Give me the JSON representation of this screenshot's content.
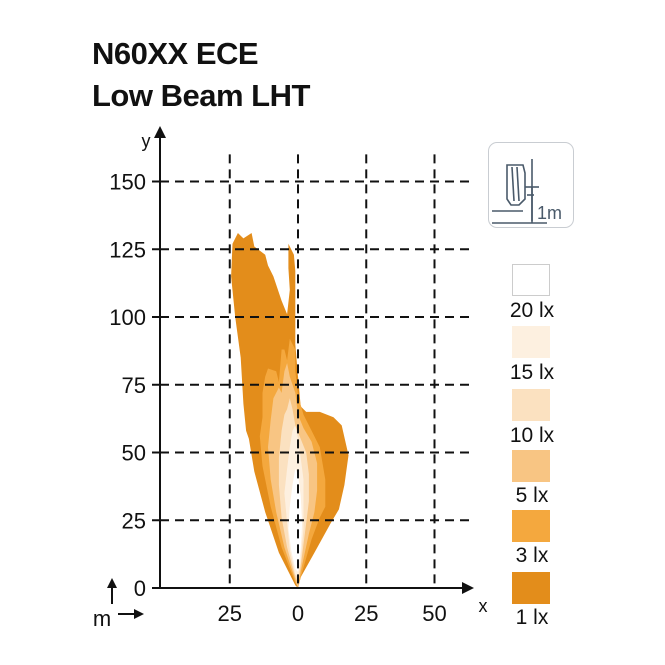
{
  "header": {
    "title_line1": "N60XX ECE",
    "title_line2": "Low Beam LHT"
  },
  "chart_data": {
    "type": "area",
    "xlabel": "x",
    "ylabel": "y",
    "unit_label": "m",
    "x_ticks": [
      "25",
      "0",
      "25",
      "50"
    ],
    "x_tick_values": [
      -25,
      0,
      25,
      50
    ],
    "y_ticks": [
      0,
      25,
      50,
      75,
      100,
      125,
      150
    ],
    "xlim": [
      -50,
      60
    ],
    "ylim": [
      0,
      160
    ],
    "grid": true,
    "mount_badge": {
      "label": "1m",
      "icon": "headlamp-mount-height-icon"
    },
    "legend": [
      {
        "label": "20 lx",
        "color": "#ffffff"
      },
      {
        "label": "15 lx",
        "color": "#fdf0e0"
      },
      {
        "label": "10 lx",
        "color": "#fbe1c0"
      },
      {
        "label": "5 lx",
        "color": "#f8c583"
      },
      {
        "label": "3 lx",
        "color": "#f4a83e"
      },
      {
        "label": "1 lx",
        "color": "#e38d1b"
      }
    ],
    "isolux": [
      {
        "level": "1 lx",
        "color": "#e38d1b",
        "points": [
          [
            -1,
            1
          ],
          [
            -7,
            13
          ],
          [
            -12,
            28
          ],
          [
            -16,
            43
          ],
          [
            -18,
            55
          ],
          [
            -19,
            58
          ],
          [
            -20,
            68
          ],
          [
            -21,
            85
          ],
          [
            -23,
            100
          ],
          [
            -24.5,
            115
          ],
          [
            -24,
            127
          ],
          [
            -22,
            131
          ],
          [
            -20,
            129
          ],
          [
            -17,
            131
          ],
          [
            -16,
            126
          ],
          [
            -12,
            123
          ],
          [
            -11,
            119
          ],
          [
            -9,
            115
          ],
          [
            -6,
            106
          ],
          [
            -4,
            101
          ],
          [
            -3,
            110
          ],
          [
            -3.5,
            118
          ],
          [
            -3.5,
            127
          ],
          [
            -1.5,
            123
          ],
          [
            -1,
            117
          ],
          [
            -1,
            103
          ],
          [
            -1,
            90
          ],
          [
            0,
            78
          ],
          [
            1,
            67
          ],
          [
            3,
            65
          ],
          [
            8,
            65
          ],
          [
            13,
            63
          ],
          [
            16,
            60
          ],
          [
            18.5,
            49
          ],
          [
            17,
            38
          ],
          [
            15,
            29
          ],
          [
            12,
            24
          ],
          [
            6,
            13
          ],
          [
            1,
            4
          ],
          [
            0,
            0
          ]
        ]
      },
      {
        "level": "3 lx",
        "color": "#f4a83e",
        "points": [
          [
            -1,
            2
          ],
          [
            -6,
            15
          ],
          [
            -10,
            30
          ],
          [
            -13,
            45
          ],
          [
            -14,
            56
          ],
          [
            -13,
            63
          ],
          [
            -13,
            72
          ],
          [
            -12,
            78
          ],
          [
            -11,
            81
          ],
          [
            -8,
            80
          ],
          [
            -7,
            76
          ],
          [
            -6,
            88
          ],
          [
            -5,
            88
          ],
          [
            -4,
            84
          ],
          [
            -3,
            92
          ],
          [
            -2,
            90
          ],
          [
            -1,
            88
          ],
          [
            -1,
            80
          ],
          [
            0,
            71
          ],
          [
            2,
            64
          ],
          [
            5,
            58
          ],
          [
            8,
            52
          ],
          [
            10,
            40
          ],
          [
            10,
            30
          ],
          [
            8,
            26
          ],
          [
            5,
            18
          ],
          [
            1,
            4
          ],
          [
            0,
            0
          ]
        ]
      },
      {
        "level": "5 lx",
        "color": "#f8c583",
        "points": [
          [
            -1,
            3
          ],
          [
            -5,
            15
          ],
          [
            -8,
            28
          ],
          [
            -10,
            40
          ],
          [
            -11,
            52
          ],
          [
            -10,
            62
          ],
          [
            -9,
            70
          ],
          [
            -7,
            74
          ],
          [
            -6,
            72
          ],
          [
            -5,
            80
          ],
          [
            -4,
            83
          ],
          [
            -3,
            78
          ],
          [
            -1,
            72
          ],
          [
            0,
            64
          ],
          [
            2,
            59
          ],
          [
            5,
            54
          ],
          [
            7,
            46
          ],
          [
            7,
            36
          ],
          [
            6,
            28
          ],
          [
            4,
            20
          ],
          [
            1,
            6
          ],
          [
            0,
            0
          ]
        ]
      },
      {
        "level": "10 lx",
        "color": "#fbe1c0",
        "points": [
          [
            -1,
            4
          ],
          [
            -4,
            15
          ],
          [
            -6,
            26
          ],
          [
            -7,
            38
          ],
          [
            -7,
            48
          ],
          [
            -6,
            58
          ],
          [
            -5,
            64
          ],
          [
            -4,
            66
          ],
          [
            -3,
            70
          ],
          [
            -2,
            66
          ],
          [
            -1,
            60
          ],
          [
            1,
            55
          ],
          [
            3,
            50
          ],
          [
            4,
            42
          ],
          [
            4,
            32
          ],
          [
            3,
            24
          ],
          [
            1,
            8
          ],
          [
            0,
            2
          ]
        ]
      },
      {
        "level": "15 lx",
        "color": "#fdf0e0",
        "points": [
          [
            -1,
            5
          ],
          [
            -3,
            14
          ],
          [
            -4,
            24
          ],
          [
            -5,
            35
          ],
          [
            -4,
            44
          ],
          [
            -3,
            52
          ],
          [
            -2,
            58
          ],
          [
            -1,
            60
          ],
          [
            0,
            55
          ],
          [
            1,
            48
          ],
          [
            2,
            40
          ],
          [
            2,
            30
          ],
          [
            2,
            22
          ],
          [
            1,
            10
          ],
          [
            0,
            4
          ]
        ]
      },
      {
        "level": "20 lx",
        "color": "#ffffff",
        "points": [
          [
            -1,
            7
          ],
          [
            -2.5,
            14
          ],
          [
            -3.5,
            22
          ],
          [
            -3,
            30
          ],
          [
            -2,
            38
          ],
          [
            -1,
            44
          ],
          [
            0,
            42
          ],
          [
            1,
            34
          ],
          [
            1.5,
            24
          ],
          [
            1,
            14
          ],
          [
            0,
            6
          ]
        ]
      }
    ]
  }
}
